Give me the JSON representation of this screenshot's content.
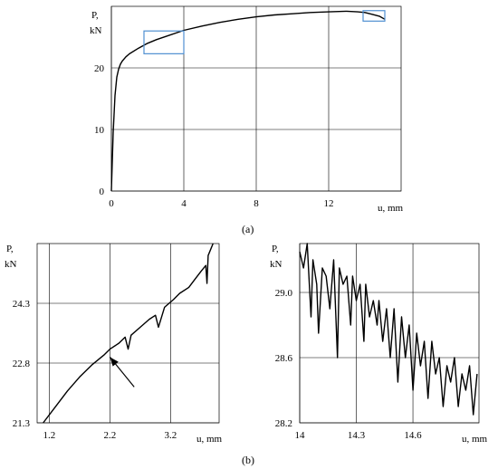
{
  "captions": {
    "a": "(a)",
    "b": "(b)"
  },
  "colors": {
    "grid": "#000000",
    "curve": "#000000",
    "zoom_box": "#4f8fd1"
  },
  "chart_data": [
    {
      "id": "a",
      "type": "line",
      "title": "",
      "ylabel_line1": "P,",
      "ylabel_line2": "kN",
      "xlabel": "u, mm",
      "xlim": [
        0,
        16
      ],
      "ylim": [
        0,
        30
      ],
      "xticks": [
        0,
        4,
        8,
        12
      ],
      "yticks": [
        0,
        10,
        20
      ],
      "xtick_labels": [
        "0",
        "4",
        "8",
        "12"
      ],
      "ytick_labels": [
        "0",
        "10",
        "20"
      ],
      "grid": true,
      "series": [
        {
          "x": [
            0,
            0.1,
            0.2,
            0.3,
            0.4,
            0.5,
            0.6,
            0.8,
            1.0,
            1.5,
            2.0,
            2.5,
            3.0,
            4.0,
            5.0,
            6.0,
            7.0,
            8.0,
            9.0,
            10.0,
            11.0,
            12.0,
            13.0,
            13.6,
            14.0,
            14.4,
            14.8,
            15.1
          ],
          "y": [
            0,
            9.5,
            15.5,
            18.5,
            19.8,
            20.6,
            21.1,
            21.8,
            22.3,
            23.2,
            24.0,
            24.6,
            25.1,
            26.1,
            26.8,
            27.4,
            27.9,
            28.3,
            28.6,
            28.8,
            29.0,
            29.1,
            29.2,
            29.1,
            29.0,
            28.7,
            28.4,
            27.9
          ]
        }
      ],
      "zoom_boxes": [
        {
          "x": [
            1.8,
            4.0
          ],
          "y": [
            22.3,
            26.0
          ]
        },
        {
          "x": [
            13.9,
            15.1
          ],
          "y": [
            27.6,
            29.3
          ]
        }
      ]
    },
    {
      "id": "b1",
      "type": "line",
      "title": "",
      "ylabel_line1": "P,",
      "ylabel_line2": "kN",
      "xlabel": "u, mm",
      "xlim": [
        1.0,
        4.0
      ],
      "ylim": [
        21.3,
        25.8
      ],
      "xticks": [
        1.2,
        2.2,
        3.2
      ],
      "yticks": [
        21.3,
        22.8,
        24.3
      ],
      "xtick_labels": [
        "1.2",
        "2.2",
        "3.2"
      ],
      "ytick_labels": [
        "21.3",
        "22.8",
        "24.3"
      ],
      "grid": true,
      "series": [
        {
          "x": [
            1.1,
            1.3,
            1.5,
            1.7,
            1.9,
            2.1,
            2.2,
            2.35,
            2.45,
            2.5,
            2.55,
            2.7,
            2.85,
            2.95,
            3.0,
            3.1,
            3.25,
            3.35,
            3.5,
            3.6,
            3.7,
            3.78,
            3.8,
            3.82,
            3.9
          ],
          "y": [
            21.3,
            21.7,
            22.1,
            22.45,
            22.75,
            23.0,
            23.15,
            23.3,
            23.45,
            23.15,
            23.5,
            23.7,
            23.9,
            24.0,
            23.7,
            24.2,
            24.4,
            24.55,
            24.7,
            24.9,
            25.1,
            25.25,
            24.8,
            25.5,
            25.8
          ]
        }
      ],
      "arrow": {
        "from": [
          2.6,
          22.2
        ],
        "to": [
          2.2,
          22.95
        ]
      }
    },
    {
      "id": "b2",
      "type": "line",
      "title": "",
      "ylabel_line1": "P,",
      "ylabel_line2": "kN",
      "xlabel": "u, mm",
      "xlim": [
        14.0,
        14.95
      ],
      "ylim": [
        28.2,
        29.3
      ],
      "xticks": [
        14.0,
        14.3,
        14.6
      ],
      "yticks": [
        28.2,
        28.6,
        29.0
      ],
      "xtick_labels": [
        "14",
        "14.3",
        "14.6"
      ],
      "ytick_labels": [
        "28.2",
        "28.6",
        "29.0"
      ],
      "grid": true,
      "series": [
        {
          "x": [
            14.0,
            14.02,
            14.04,
            14.06,
            14.07,
            14.09,
            14.1,
            14.12,
            14.14,
            14.16,
            14.18,
            14.2,
            14.21,
            14.23,
            14.25,
            14.27,
            14.28,
            14.3,
            14.32,
            14.34,
            14.35,
            14.37,
            14.39,
            14.41,
            14.42,
            14.44,
            14.46,
            14.48,
            14.5,
            14.52,
            14.54,
            14.56,
            14.58,
            14.6,
            14.62,
            14.64,
            14.66,
            14.68,
            14.7,
            14.72,
            14.74,
            14.76,
            14.78,
            14.8,
            14.82,
            14.84,
            14.86,
            14.88,
            14.9,
            14.92,
            14.94
          ],
          "y": [
            29.25,
            29.15,
            29.3,
            28.85,
            29.2,
            29.05,
            28.75,
            29.15,
            29.1,
            28.9,
            29.2,
            28.6,
            29.15,
            29.05,
            29.1,
            28.8,
            29.1,
            28.95,
            29.05,
            28.7,
            29.05,
            28.85,
            28.95,
            28.8,
            28.95,
            28.7,
            28.9,
            28.6,
            28.9,
            28.45,
            28.85,
            28.6,
            28.8,
            28.4,
            28.75,
            28.55,
            28.7,
            28.35,
            28.7,
            28.5,
            28.6,
            28.3,
            28.55,
            28.45,
            28.6,
            28.3,
            28.5,
            28.4,
            28.55,
            28.25,
            28.5
          ]
        }
      ]
    }
  ]
}
